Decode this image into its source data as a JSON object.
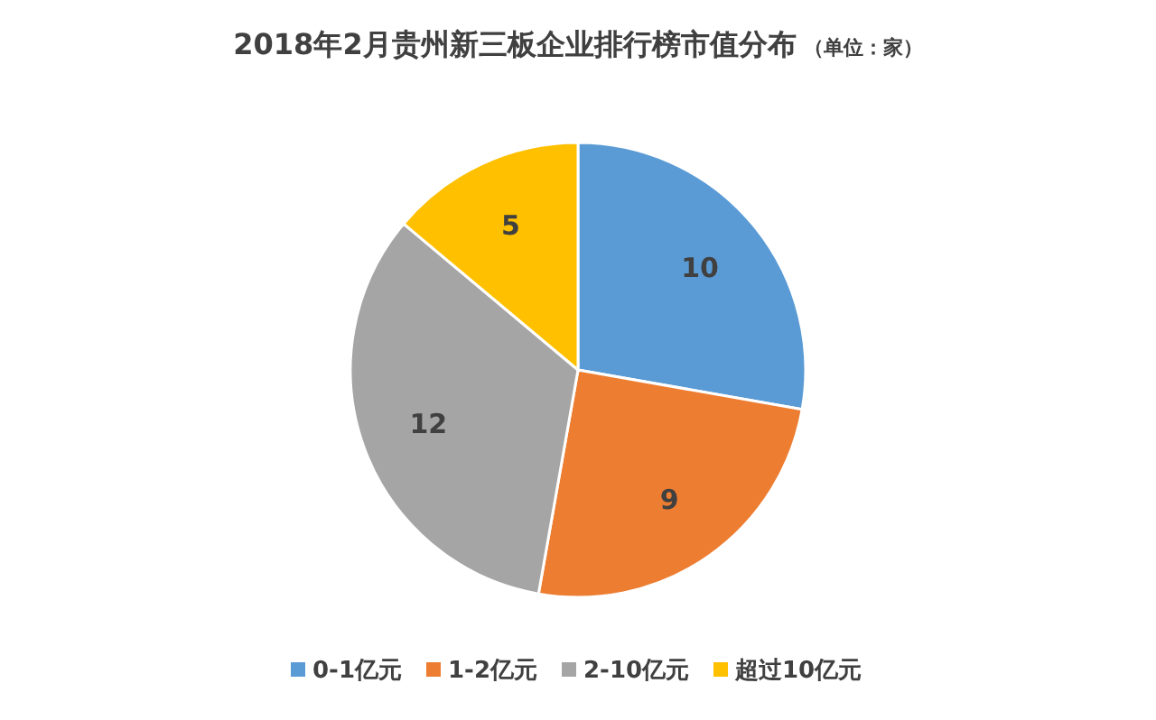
{
  "chart_data": {
    "type": "pie",
    "title": "2018年2月贵州新三板企业排行榜市值分布",
    "subtitle": "（单位：家）",
    "categories": [
      "0-1亿元",
      "1-2亿元",
      "2-10亿元",
      "超过10亿元"
    ],
    "values": [
      10,
      9,
      12,
      5
    ],
    "colors": [
      "#5b9bd5",
      "#ed7d31",
      "#a5a5a5",
      "#ffc000"
    ],
    "data_labels": true,
    "legend": "bottom"
  }
}
